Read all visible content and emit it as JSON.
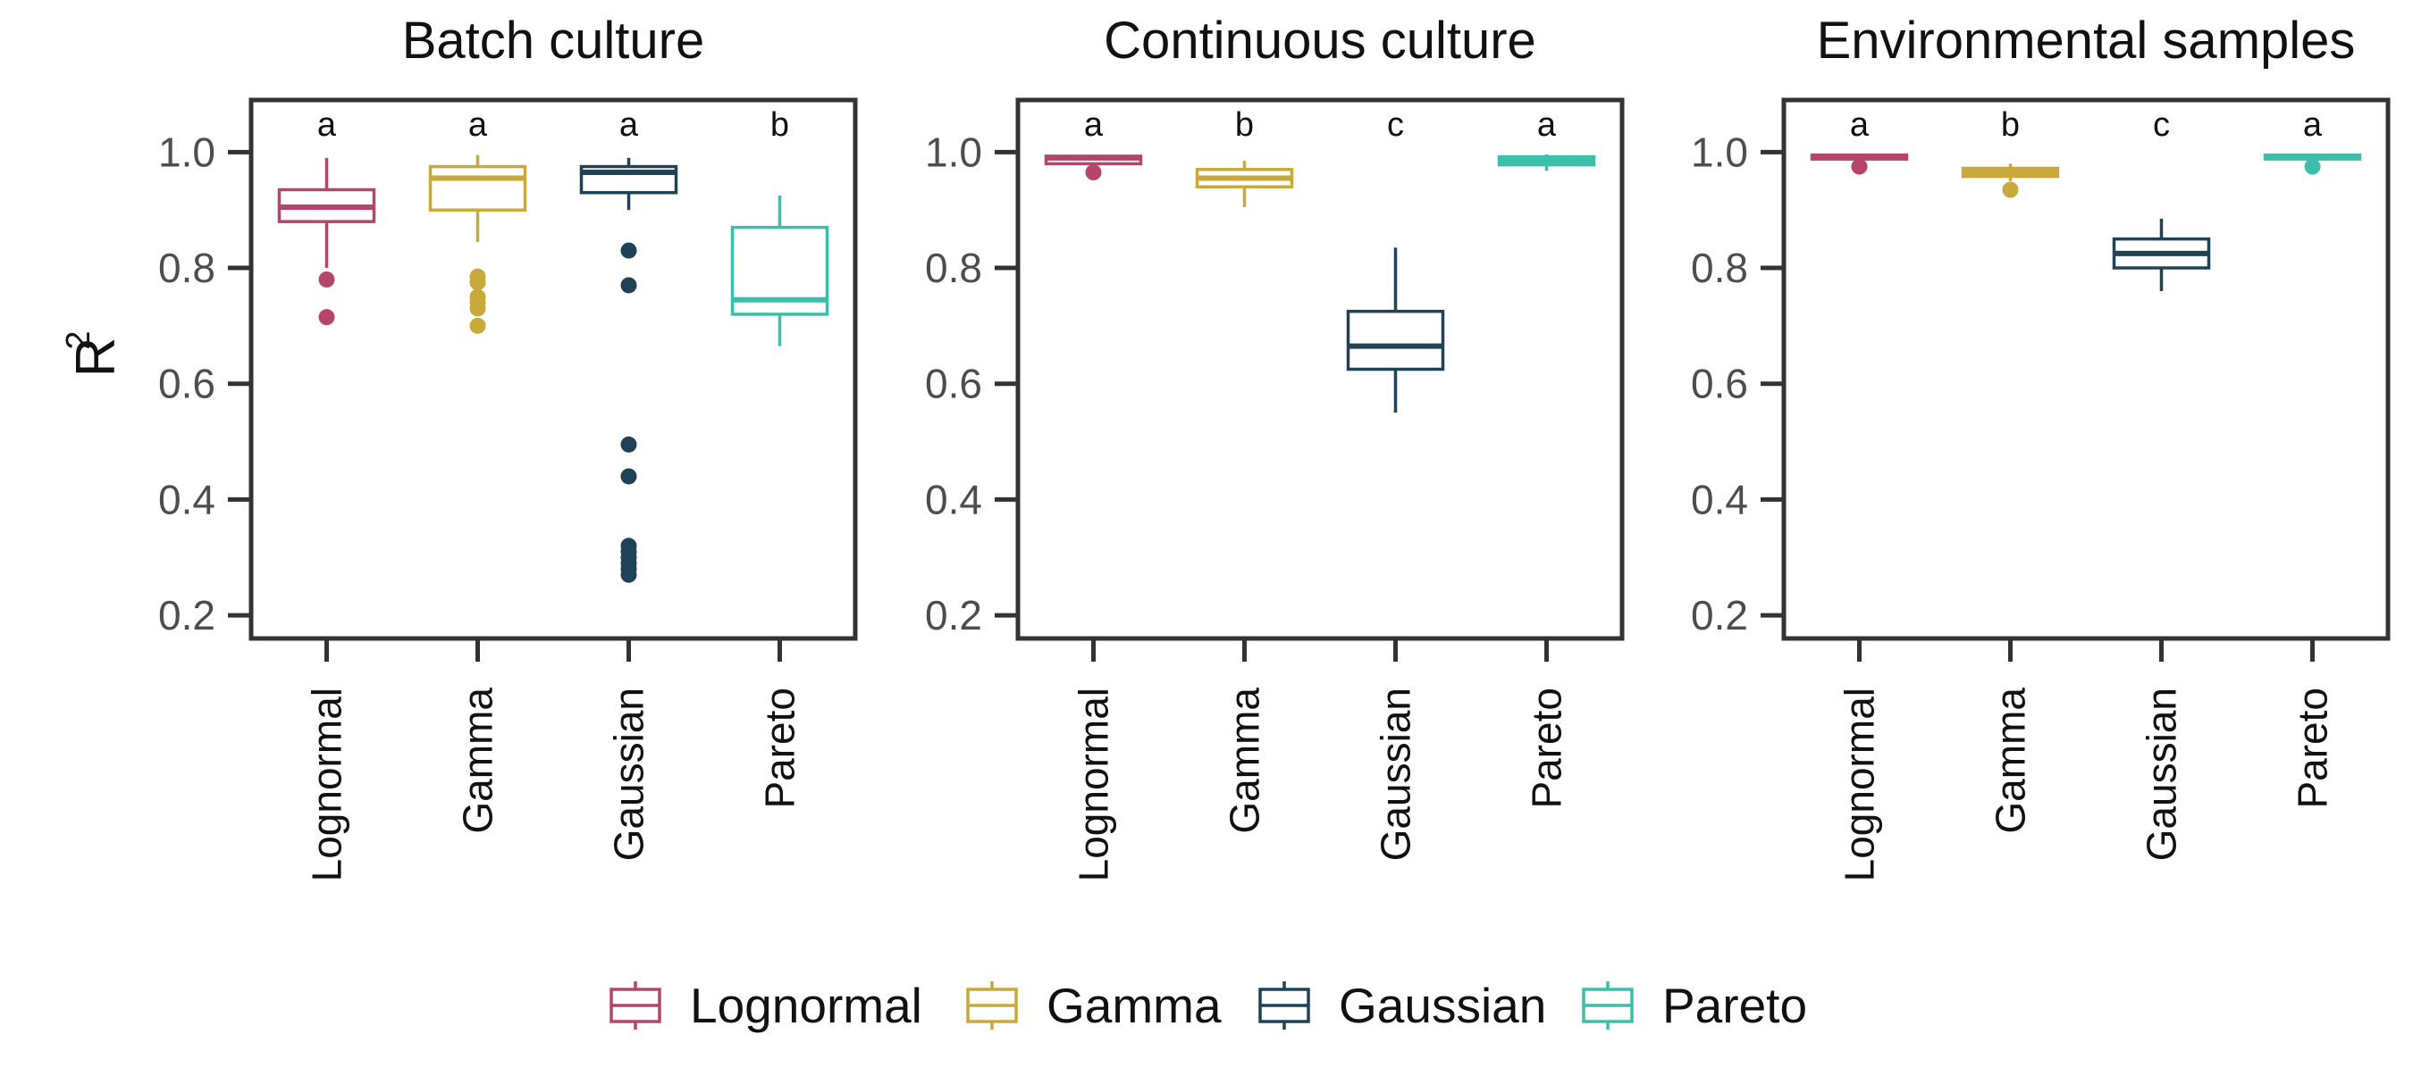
{
  "chart_data": {
    "type": "boxplot",
    "ylabel": "R",
    "ylabel_superscript": "2",
    "ylim": [
      0.16,
      1.09
    ],
    "yticks": [
      "0.2",
      "0.4",
      "0.6",
      "0.8",
      "1.0"
    ],
    "ytick_values": [
      0.2,
      0.4,
      0.6,
      0.8,
      1.0
    ],
    "grid": false,
    "legend_position": "bottom",
    "categories": [
      "Lognormal",
      "Gamma",
      "Gaussian",
      "Pareto"
    ],
    "colors": {
      "Lognormal": "#b5456a",
      "Gamma": "#c9a93a",
      "Gaussian": "#1f4257",
      "Pareto": "#3cbfaa"
    },
    "panels": [
      {
        "title": "Batch culture",
        "boxes": [
          {
            "category": "Lognormal",
            "letter": "a",
            "whisker_low": 0.8,
            "q1": 0.88,
            "median": 0.905,
            "q3": 0.935,
            "whisker_high": 0.99,
            "outliers": [
              0.78,
              0.715
            ]
          },
          {
            "category": "Gamma",
            "letter": "a",
            "whisker_low": 0.845,
            "q1": 0.9,
            "median": 0.955,
            "q3": 0.975,
            "whisker_high": 0.995,
            "outliers": [
              0.785,
              0.775,
              0.75,
              0.74,
              0.73,
              0.7
            ]
          },
          {
            "category": "Gaussian",
            "letter": "a",
            "whisker_low": 0.9,
            "q1": 0.93,
            "median": 0.965,
            "q3": 0.975,
            "whisker_high": 0.99,
            "outliers": [
              0.83,
              0.77,
              0.495,
              0.44,
              0.32,
              0.31,
              0.3,
              0.29,
              0.28,
              0.27
            ]
          },
          {
            "category": "Pareto",
            "letter": "b",
            "whisker_low": 0.665,
            "q1": 0.72,
            "median": 0.745,
            "q3": 0.87,
            "whisker_high": 0.925,
            "outliers": []
          }
        ]
      },
      {
        "title": "Continuous culture",
        "boxes": [
          {
            "category": "Lognormal",
            "letter": "a",
            "whisker_low": 0.975,
            "q1": 0.98,
            "median": 0.99,
            "q3": 0.993,
            "whisker_high": 0.995,
            "outliers": [
              0.965
            ]
          },
          {
            "category": "Gamma",
            "letter": "b",
            "whisker_low": 0.905,
            "q1": 0.94,
            "median": 0.955,
            "q3": 0.97,
            "whisker_high": 0.985,
            "outliers": []
          },
          {
            "category": "Gaussian",
            "letter": "c",
            "whisker_low": 0.55,
            "q1": 0.625,
            "median": 0.665,
            "q3": 0.725,
            "whisker_high": 0.835,
            "outliers": []
          },
          {
            "category": "Pareto",
            "letter": "a",
            "whisker_low": 0.968,
            "q1": 0.978,
            "median": 0.985,
            "q3": 0.992,
            "whisker_high": 0.996,
            "outliers": []
          }
        ]
      },
      {
        "title": "Environmental samples",
        "boxes": [
          {
            "category": "Lognormal",
            "letter": "a",
            "whisker_low": 0.985,
            "q1": 0.988,
            "median": 0.992,
            "q3": 0.995,
            "whisker_high": 0.997,
            "outliers": [
              0.975
            ]
          },
          {
            "category": "Gamma",
            "letter": "b",
            "whisker_low": 0.95,
            "q1": 0.958,
            "median": 0.965,
            "q3": 0.972,
            "whisker_high": 0.98,
            "outliers": [
              0.935
            ]
          },
          {
            "category": "Gaussian",
            "letter": "c",
            "whisker_low": 0.76,
            "q1": 0.8,
            "median": 0.825,
            "q3": 0.85,
            "whisker_high": 0.885,
            "outliers": []
          },
          {
            "category": "Pareto",
            "letter": "a",
            "whisker_low": 0.985,
            "q1": 0.988,
            "median": 0.992,
            "q3": 0.995,
            "whisker_high": 0.997,
            "outliers": [
              0.975
            ]
          }
        ]
      }
    ],
    "legend": [
      "Lognormal",
      "Gamma",
      "Gaussian",
      "Pareto"
    ]
  }
}
